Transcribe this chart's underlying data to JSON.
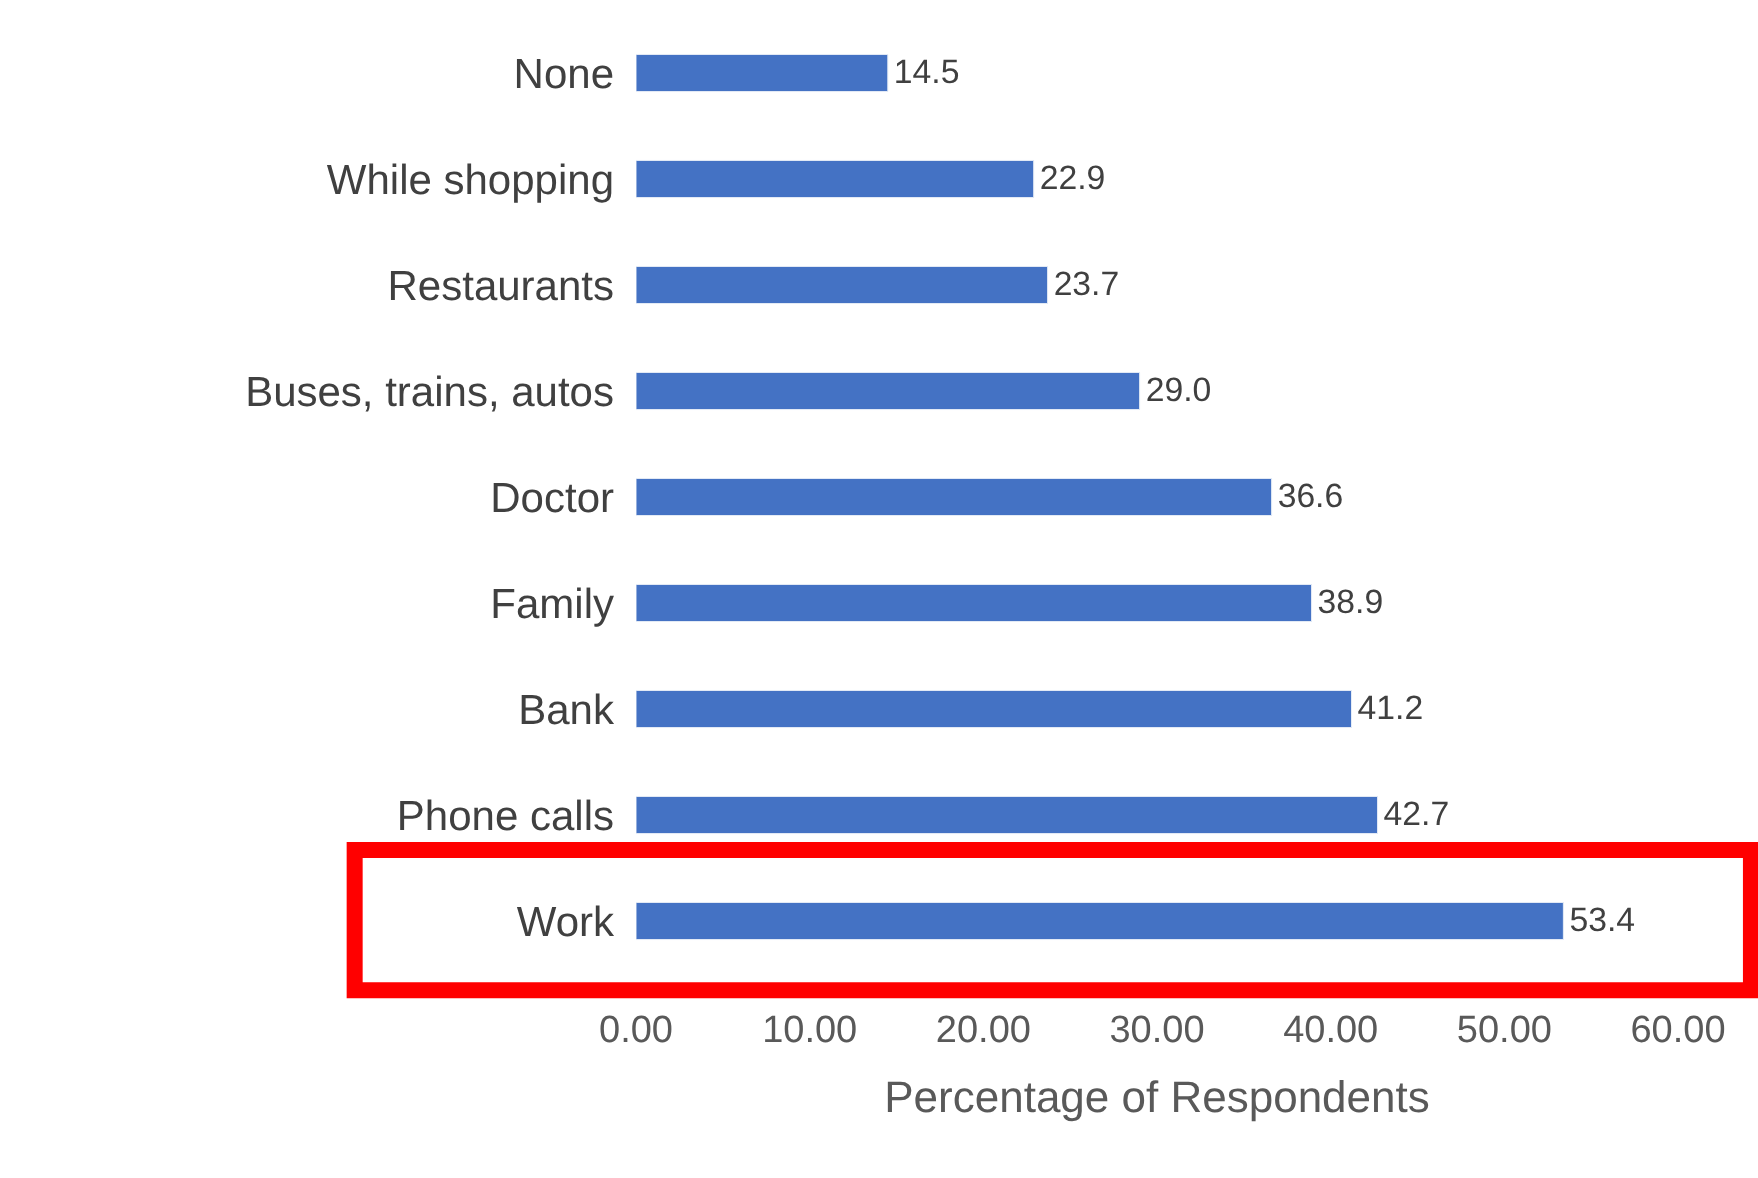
{
  "chart_data": {
    "type": "bar",
    "orientation": "horizontal",
    "xlabel": "Percentage of Respondents",
    "categories": [
      "None",
      "While shopping",
      "Restaurants",
      "Buses, trains, autos",
      "Doctor",
      "Family",
      "Bank",
      "Phone calls",
      "Work"
    ],
    "values": [
      14.5,
      22.9,
      23.7,
      29.0,
      36.6,
      38.9,
      41.2,
      42.7,
      53.4
    ],
    "value_labels": [
      "14.5",
      "22.9",
      "23.7",
      "29.0",
      "36.6",
      "38.9",
      "41.2",
      "42.7",
      "53.4"
    ],
    "color": "#4472c4",
    "xlim": [
      0,
      60
    ],
    "xticks": [
      {
        "value": 0,
        "label": "0.00"
      },
      {
        "value": 10,
        "label": "10.00"
      },
      {
        "value": 20,
        "label": "20.00"
      },
      {
        "value": 30,
        "label": "30.00"
      },
      {
        "value": 40,
        "label": "40.00"
      },
      {
        "value": 50,
        "label": "50.00"
      },
      {
        "value": 60,
        "label": "60.00"
      }
    ],
    "legend": false
  }
}
